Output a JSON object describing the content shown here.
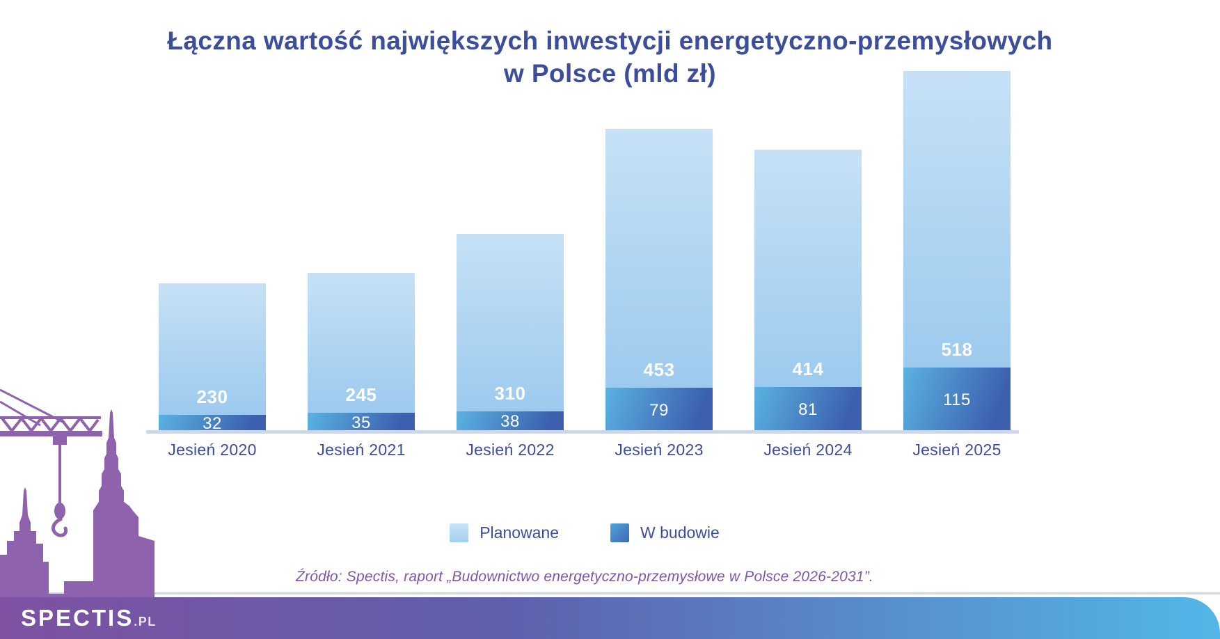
{
  "title": {
    "line1": "Łączna wartość największych inwestycji energetyczno-przemysłowych",
    "line2": "w Polsce (mld zł)"
  },
  "chart_data": {
    "type": "bar",
    "stacked": true,
    "title": "Łączna wartość największych inwestycji energetyczno-przemysłowych w Polsce (mld zł)",
    "unit": "mld zł",
    "categories": [
      "Jesień 2020",
      "Jesień 2021",
      "Jesień 2022",
      "Jesień 2023",
      "Jesień 2024",
      "Jesień 2025"
    ],
    "series": [
      {
        "name": "Planowane",
        "values": [
          230,
          245,
          310,
          453,
          414,
          518
        ]
      },
      {
        "name": "W budowie",
        "values": [
          32,
          35,
          38,
          79,
          81,
          115
        ]
      }
    ],
    "totals": [
      262,
      280,
      348,
      532,
      495,
      633
    ],
    "ylim": [
      0,
      633
    ],
    "grid": false,
    "legend_position": "bottom",
    "value_labels": "white, inside segments"
  },
  "legend": {
    "items": [
      {
        "label": "Planowane",
        "color": "#a9d3f1"
      },
      {
        "label": "W budowie",
        "color": "#4584c6"
      }
    ]
  },
  "source_note": "Źródło: Spectis, raport „Budownictwo energetyczno-przemysłowe w Polsce 2026-2031”.",
  "footer": {
    "logo_main": "SPECTIS",
    "logo_suffix": ".PL"
  },
  "colors": {
    "title-navy": "#3c4d9b",
    "planned-light": "#c6e1f6",
    "planned-dark": "#9ccaee",
    "built-light": "#5ab2e2",
    "built-dark": "#3c5fae",
    "axis-line": "#ccd8ea",
    "source-purple": "#8055a8",
    "skyline-purple": "#8f62ae",
    "footer-purple": "#7e51a1",
    "footer-blue": "#52b7e8"
  }
}
